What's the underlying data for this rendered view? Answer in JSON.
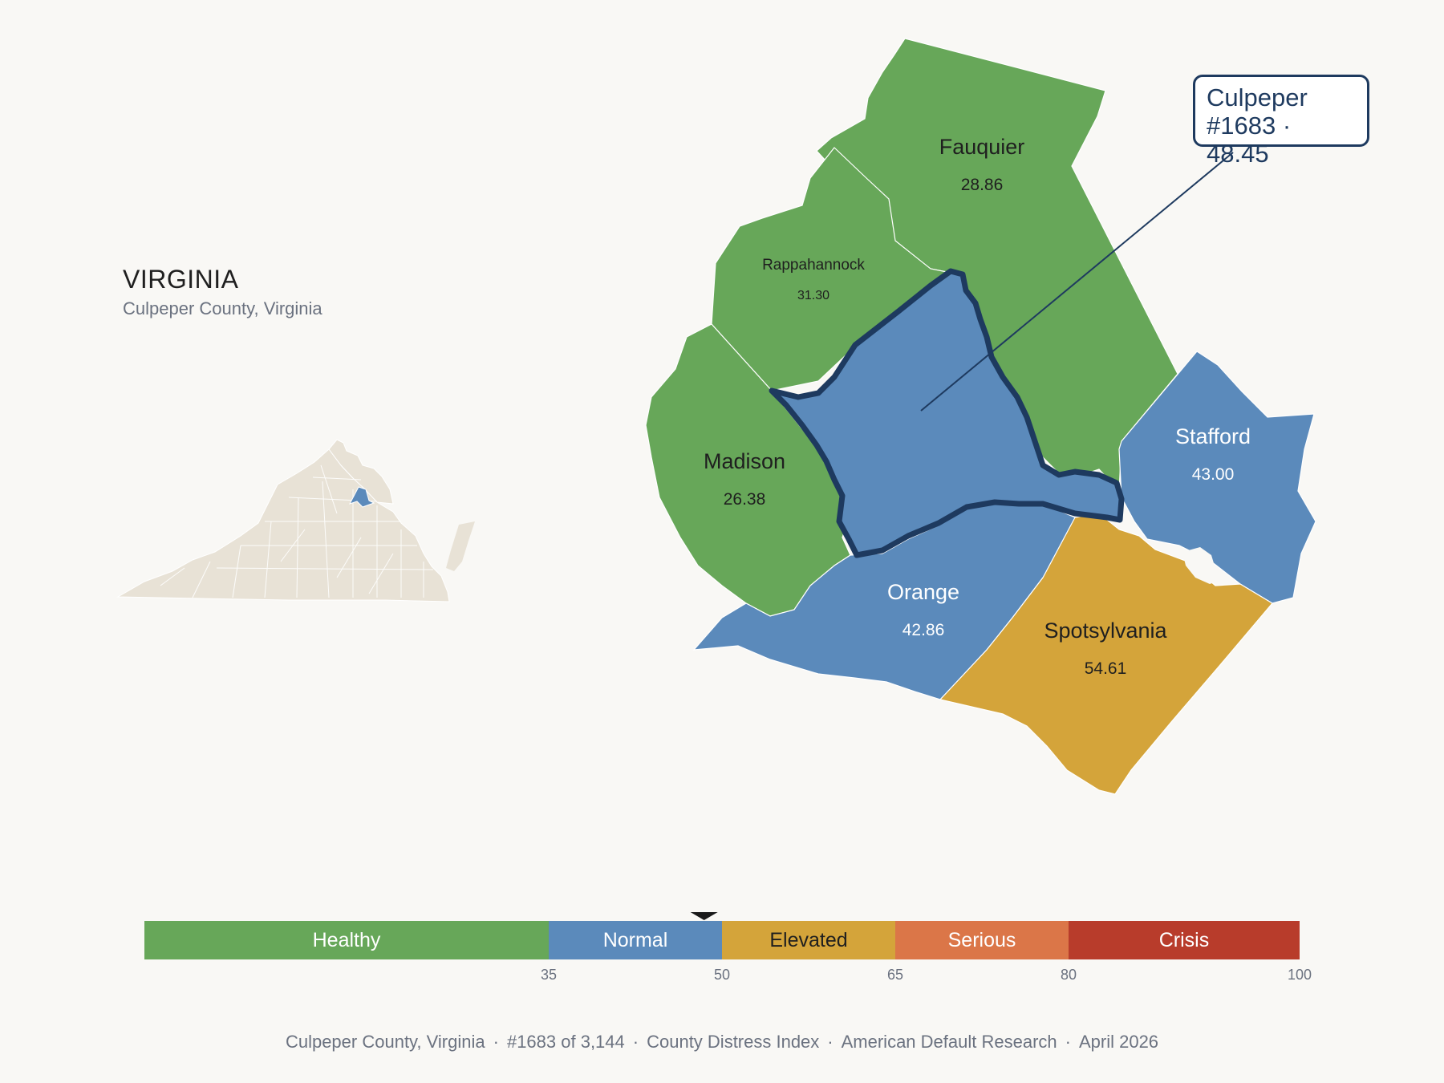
{
  "state": {
    "title": "VIRGINIA",
    "subtitle": "Culpeper County, Virginia"
  },
  "callout": {
    "name": "Culpeper",
    "rank_score": "#1683 · 48.45"
  },
  "counties": [
    {
      "name": "Fauquier",
      "score": "28.86",
      "category": "Healthy"
    },
    {
      "name": "Rappahannock",
      "score": "31.30",
      "category": "Healthy"
    },
    {
      "name": "Madison",
      "score": "26.38",
      "category": "Healthy"
    },
    {
      "name": "Culpeper",
      "score": "48.45",
      "category": "Normal",
      "highlighted": true
    },
    {
      "name": "Stafford",
      "score": "43.00",
      "category": "Normal"
    },
    {
      "name": "Orange",
      "score": "42.86",
      "category": "Normal"
    },
    {
      "name": "Spotsylvania",
      "score": "54.61",
      "category": "Elevated"
    }
  ],
  "scale": {
    "segments": [
      {
        "label": "Healthy",
        "from": 0,
        "to": 35,
        "color": "#67a759"
      },
      {
        "label": "Normal",
        "from": 35,
        "to": 50,
        "color": "#5b8abb"
      },
      {
        "label": "Elevated",
        "from": 50,
        "to": 65,
        "color": "#d4a43a"
      },
      {
        "label": "Serious",
        "from": 65,
        "to": 80,
        "color": "#db7648"
      },
      {
        "label": "Crisis",
        "from": 80,
        "to": 100,
        "color": "#b83c2b"
      }
    ],
    "ticks": [
      "35",
      "50",
      "65",
      "80",
      "100"
    ],
    "marker_value": 48.45
  },
  "footer": {
    "county": "Culpeper County, Virginia",
    "rank": "#1683 of 3,144",
    "index": "County Distress Index",
    "source": "American Default Research",
    "date": "April 2026"
  },
  "colors": {
    "healthy": "#67a759",
    "normal": "#5b8abb",
    "elevated": "#d4a43a",
    "highlight_outline": "#1e3a5f",
    "inset_land": "#e8e2d6",
    "background": "#f9f8f5"
  }
}
